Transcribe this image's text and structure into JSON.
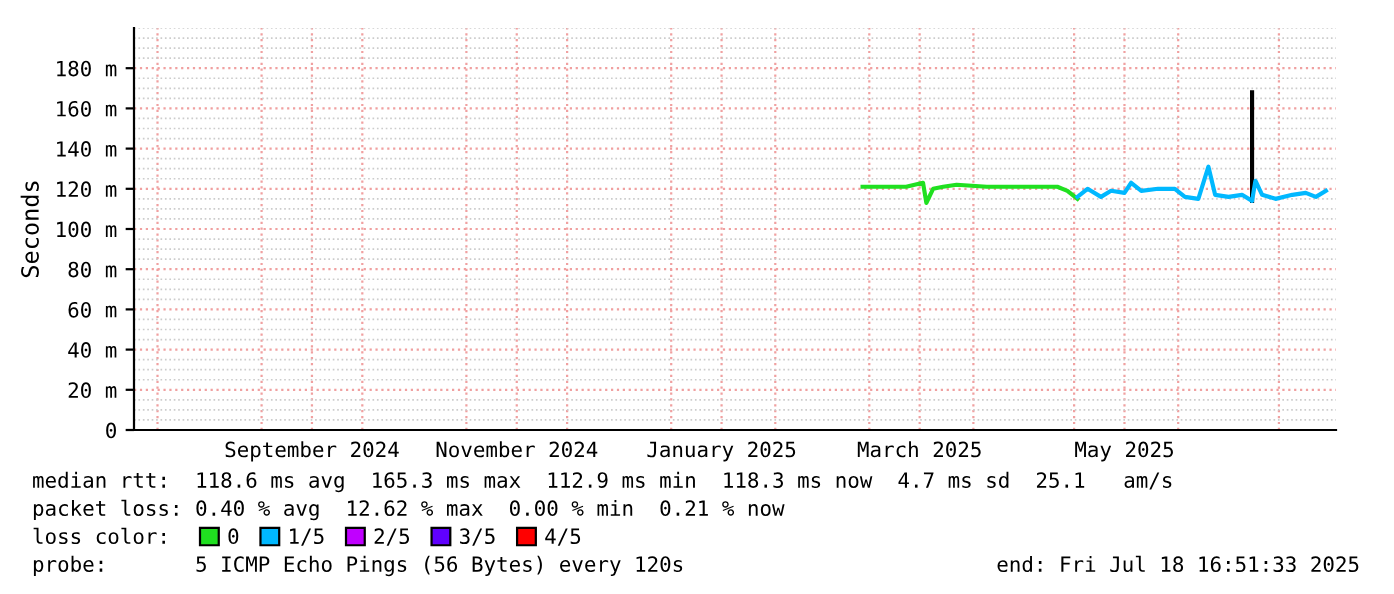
{
  "chart_data": {
    "type": "line",
    "ylabel": "Seconds",
    "xlim": [
      "2024-07-25",
      "2025-07-18"
    ],
    "xticks": [
      {
        "value": "2024-08-01",
        "label": null
      },
      {
        "value": "2024-09-01",
        "label": null
      },
      {
        "value": "2024-09-16",
        "label": "September 2024"
      },
      {
        "value": "2024-10-01",
        "label": null
      },
      {
        "value": "2024-11-01",
        "label": null
      },
      {
        "value": "2024-11-16",
        "label": "November 2024"
      },
      {
        "value": "2024-12-01",
        "label": null
      },
      {
        "value": "2025-01-01",
        "label": null
      },
      {
        "value": "2025-01-16",
        "label": "January 2025"
      },
      {
        "value": "2025-02-01",
        "label": null
      },
      {
        "value": "2025-03-01",
        "label": null
      },
      {
        "value": "2025-03-16",
        "label": "March 2025"
      },
      {
        "value": "2025-04-01",
        "label": null
      },
      {
        "value": "2025-05-01",
        "label": null
      },
      {
        "value": "2025-05-16",
        "label": "May 2025"
      },
      {
        "value": "2025-06-01",
        "label": null
      },
      {
        "value": "2025-07-01",
        "label": null
      }
    ],
    "ylim": [
      0,
      200
    ],
    "yticks": [
      0,
      {
        "value": 20,
        "label": "20 m"
      },
      {
        "value": 40,
        "label": "40 m"
      },
      {
        "value": 60,
        "label": "60 m"
      },
      {
        "value": 80,
        "label": "80 m"
      },
      {
        "value": 100,
        "label": "100 m"
      },
      {
        "value": 120,
        "label": "120 m"
      },
      {
        "value": 140,
        "label": "140 m"
      },
      {
        "value": 160,
        "label": "160 m"
      },
      {
        "value": 180,
        "label": "180 m"
      }
    ],
    "grid": true,
    "legend": "bottom",
    "marker": "none",
    "line_style": "solid",
    "series": [
      {
        "color": "#000000",
        "x": [
          "2025-06-23",
          "2025-06-23"
        ],
        "values": [
          114,
          168
        ]
      },
      {
        "name": "0",
        "color": "#20e020",
        "x": [
          "2025-02-27",
          "2025-03-06",
          "2025-03-12",
          "2025-03-17",
          "2025-03-18",
          "2025-03-20",
          "2025-03-23",
          "2025-03-27",
          "2025-04-05",
          "2025-04-14",
          "2025-04-26",
          "2025-04-29",
          "2025-05-02"
        ],
        "values": [
          121,
          121,
          121,
          123,
          113,
          120,
          121,
          122,
          121,
          121,
          121,
          119,
          115
        ]
      },
      {
        "name": "1/5",
        "color": "#00b8ff",
        "x": [
          "2025-05-02",
          "2025-05-05",
          "2025-05-09",
          "2025-05-12",
          "2025-05-16",
          "2025-05-18",
          "2025-05-21",
          "2025-05-26",
          "2025-05-31",
          "2025-06-03",
          "2025-06-07",
          "2025-06-10",
          "2025-06-12",
          "2025-06-16",
          "2025-06-20",
          "2025-06-23",
          "2025-06-24",
          "2025-06-26",
          "2025-06-30",
          "2025-07-05",
          "2025-07-09",
          "2025-07-12",
          "2025-07-15"
        ],
        "values": [
          116,
          120,
          116,
          119,
          118,
          123,
          119,
          120,
          120,
          116,
          115,
          131,
          117,
          116,
          117,
          114,
          124,
          117,
          115,
          117,
          118,
          116,
          119
        ]
      },
      {
        "name": "2/5",
        "color": "#c000ff"
      },
      {
        "name": "3/5",
        "color": "#6000ff"
      },
      {
        "name": "4/5",
        "color": "#ff0000"
      }
    ],
    "annotations": [
      "median rtt:  118.6 ms avg  165.3 ms max  112.9 ms min  118.3 ms now  4.7 ms sd  25.1   am/s",
      "packet loss: 0.40 % avg  12.62 % max  0.00 % min  0.21 % now",
      "loss color:",
      "probe:       5 ICMP Echo Pings (56 Bytes) every 120s",
      "end: Fri Jul 18 16:51:33 2025"
    ]
  }
}
